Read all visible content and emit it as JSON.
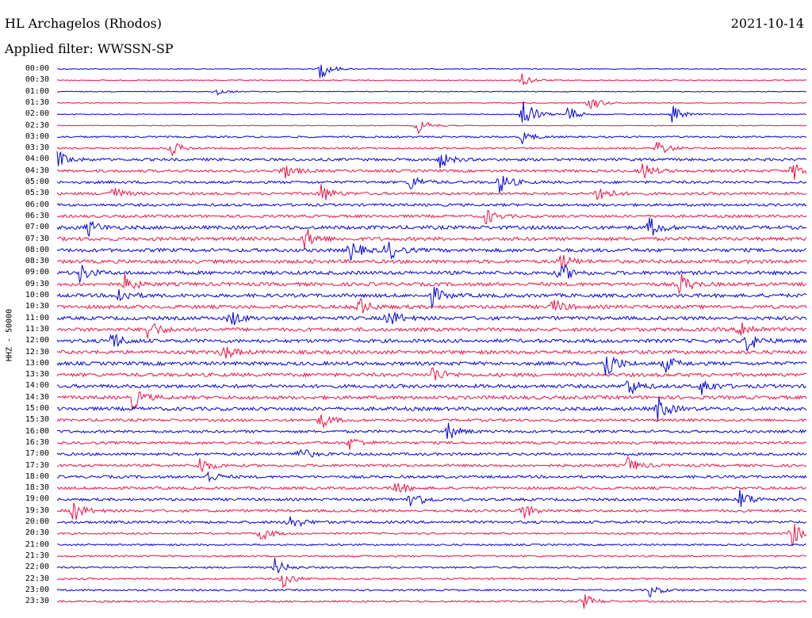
{
  "header": {
    "station": "HL Archagelos (Rhodos)",
    "date": "2021-10-14",
    "filter": "Applied filter: WWSSN-SP",
    "channel_label": "HHZ - 50000"
  },
  "colors": {
    "odd": "#0000e0",
    "even": "#ee1144"
  },
  "chart_data": {
    "type": "line",
    "title": "HL Archagelos (Rhodos)",
    "subtitle": "Applied filter: WWSSN-SP",
    "ylabel": "HHZ - 50000",
    "rows": [
      "00:00",
      "00:30",
      "01:00",
      "01:30",
      "02:00",
      "02:30",
      "03:00",
      "03:30",
      "04:00",
      "04:30",
      "05:00",
      "05:30",
      "06:00",
      "06:30",
      "07:00",
      "07:30",
      "08:00",
      "08:30",
      "09:00",
      "09:30",
      "10:00",
      "10:30",
      "11:00",
      "11:30",
      "12:00",
      "12:30",
      "13:00",
      "13:30",
      "14:00",
      "14:30",
      "15:00",
      "15:30",
      "16:00",
      "16:30",
      "17:00",
      "17:30",
      "18:00",
      "18:30",
      "19:00",
      "19:30",
      "20:00",
      "20:30",
      "21:00",
      "21:30",
      "22:00",
      "22:30",
      "23:00",
      "23:30"
    ],
    "noise_level": [
      1,
      1,
      1,
      1,
      1,
      1,
      2,
      2,
      3,
      3,
      3,
      3,
      3,
      3,
      4,
      4,
      4,
      4,
      4,
      4,
      4,
      4,
      4,
      4,
      4,
      4,
      4,
      4,
      4,
      4,
      4,
      3,
      3,
      3,
      3,
      3,
      3,
      3,
      3,
      3,
      3,
      2,
      2,
      2,
      2,
      2,
      2,
      2
    ],
    "events": [
      {
        "row": 0,
        "t": 0.35,
        "amp": 5
      },
      {
        "row": 1,
        "t": 0.62,
        "amp": 3
      },
      {
        "row": 2,
        "t": 0.21,
        "amp": 2
      },
      {
        "row": 3,
        "t": 0.71,
        "amp": 4
      },
      {
        "row": 4,
        "t": 0.62,
        "amp": 10
      },
      {
        "row": 4,
        "t": 0.68,
        "amp": 4
      },
      {
        "row": 4,
        "t": 0.82,
        "amp": 4
      },
      {
        "row": 5,
        "t": 0.48,
        "amp": 4
      },
      {
        "row": 6,
        "t": 0.62,
        "amp": 3
      },
      {
        "row": 7,
        "t": 0.15,
        "amp": 4
      },
      {
        "row": 7,
        "t": 0.8,
        "amp": 4
      },
      {
        "row": 8,
        "t": 0.0,
        "amp": 4
      },
      {
        "row": 8,
        "t": 0.51,
        "amp": 4
      },
      {
        "row": 9,
        "t": 0.3,
        "amp": 4
      },
      {
        "row": 9,
        "t": 0.78,
        "amp": 4
      },
      {
        "row": 9,
        "t": 0.98,
        "amp": 5
      },
      {
        "row": 10,
        "t": 0.47,
        "amp": 4
      },
      {
        "row": 10,
        "t": 0.59,
        "amp": 5
      },
      {
        "row": 11,
        "t": 0.07,
        "amp": 4
      },
      {
        "row": 11,
        "t": 0.35,
        "amp": 5
      },
      {
        "row": 11,
        "t": 0.72,
        "amp": 5
      },
      {
        "row": 13,
        "t": 0.57,
        "amp": 4
      },
      {
        "row": 14,
        "t": 0.04,
        "amp": 4
      },
      {
        "row": 14,
        "t": 0.79,
        "amp": 5
      },
      {
        "row": 15,
        "t": 0.33,
        "amp": 5
      },
      {
        "row": 16,
        "t": 0.39,
        "amp": 5
      },
      {
        "row": 16,
        "t": 0.44,
        "amp": 5
      },
      {
        "row": 17,
        "t": 0.67,
        "amp": 4
      },
      {
        "row": 18,
        "t": 0.03,
        "amp": 4
      },
      {
        "row": 18,
        "t": 0.67,
        "amp": 5
      },
      {
        "row": 19,
        "t": 0.09,
        "amp": 4
      },
      {
        "row": 19,
        "t": 0.83,
        "amp": 5
      },
      {
        "row": 20,
        "t": 0.08,
        "amp": 4
      },
      {
        "row": 20,
        "t": 0.5,
        "amp": 4
      },
      {
        "row": 21,
        "t": 0.4,
        "amp": 5
      },
      {
        "row": 21,
        "t": 0.66,
        "amp": 4
      },
      {
        "row": 22,
        "t": 0.23,
        "amp": 4
      },
      {
        "row": 22,
        "t": 0.44,
        "amp": 5
      },
      {
        "row": 23,
        "t": 0.12,
        "amp": 5
      },
      {
        "row": 23,
        "t": 0.91,
        "amp": 5
      },
      {
        "row": 24,
        "t": 0.07,
        "amp": 5
      },
      {
        "row": 24,
        "t": 0.92,
        "amp": 5
      },
      {
        "row": 25,
        "t": 0.22,
        "amp": 4
      },
      {
        "row": 26,
        "t": 0.73,
        "amp": 8
      },
      {
        "row": 26,
        "t": 0.81,
        "amp": 4
      },
      {
        "row": 27,
        "t": 0.5,
        "amp": 4
      },
      {
        "row": 28,
        "t": 0.76,
        "amp": 5
      },
      {
        "row": 28,
        "t": 0.86,
        "amp": 4
      },
      {
        "row": 29,
        "t": 0.1,
        "amp": 5
      },
      {
        "row": 30,
        "t": 0.8,
        "amp": 6
      },
      {
        "row": 31,
        "t": 0.35,
        "amp": 4
      },
      {
        "row": 32,
        "t": 0.52,
        "amp": 4
      },
      {
        "row": 33,
        "t": 0.39,
        "amp": 3
      },
      {
        "row": 34,
        "t": 0.32,
        "amp": 4
      },
      {
        "row": 35,
        "t": 0.19,
        "amp": 4
      },
      {
        "row": 35,
        "t": 0.76,
        "amp": 4
      },
      {
        "row": 36,
        "t": 0.2,
        "amp": 3
      },
      {
        "row": 37,
        "t": 0.45,
        "amp": 4
      },
      {
        "row": 38,
        "t": 0.47,
        "amp": 6
      },
      {
        "row": 38,
        "t": 0.91,
        "amp": 5
      },
      {
        "row": 39,
        "t": 0.02,
        "amp": 5
      },
      {
        "row": 39,
        "t": 0.62,
        "amp": 4
      },
      {
        "row": 40,
        "t": 0.31,
        "amp": 4
      },
      {
        "row": 41,
        "t": 0.27,
        "amp": 4
      },
      {
        "row": 41,
        "t": 0.98,
        "amp": 6
      },
      {
        "row": 44,
        "t": 0.29,
        "amp": 4
      },
      {
        "row": 45,
        "t": 0.3,
        "amp": 4
      },
      {
        "row": 46,
        "t": 0.79,
        "amp": 3
      },
      {
        "row": 47,
        "t": 0.7,
        "amp": 4
      }
    ]
  }
}
